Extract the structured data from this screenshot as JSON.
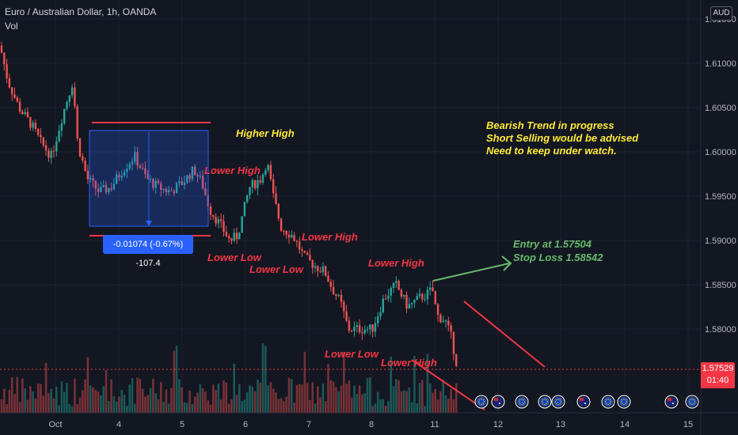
{
  "header": {
    "title": "Euro / Australian Dollar, 1h, OANDA",
    "volume_label": "Vol",
    "currency": "AUD"
  },
  "price_axis": {
    "ticks": [
      "1.61500",
      "1.61000",
      "1.60500",
      "1.60000",
      "1.59500",
      "1.59000",
      "1.58500",
      "1.58000"
    ],
    "current_price": "1.57529",
    "countdown": "01:40"
  },
  "chart_data": {
    "type": "candlestick",
    "symbol": "EURAUD",
    "timeframe": "1h",
    "x_ticks": [
      "Oct",
      "4",
      "5",
      "6",
      "7",
      "8",
      "11",
      "12",
      "13",
      "14",
      "15"
    ],
    "ylim": [
      1.5725,
      1.6155
    ],
    "grid": true,
    "price_path": [
      [
        0,
        1.612
      ],
      [
        10,
        1.608
      ],
      [
        24,
        1.605
      ],
      [
        40,
        1.603
      ],
      [
        52,
        1.601
      ],
      [
        65,
        1.5995
      ],
      [
        80,
        1.6045
      ],
      [
        92,
        1.608
      ],
      [
        98,
        1.601
      ],
      [
        110,
        1.597
      ],
      [
        125,
        1.5955
      ],
      [
        140,
        1.596
      ],
      [
        155,
        1.598
      ],
      [
        170,
        1.5995
      ],
      [
        185,
        1.597
      ],
      [
        200,
        1.596
      ],
      [
        215,
        1.5955
      ],
      [
        230,
        1.5965
      ],
      [
        245,
        1.598
      ],
      [
        255,
        1.5965
      ],
      [
        265,
        1.5935
      ],
      [
        280,
        1.5915
      ],
      [
        290,
        1.59
      ],
      [
        300,
        1.5905
      ],
      [
        315,
        1.596
      ],
      [
        330,
        1.597
      ],
      [
        337,
        1.599
      ],
      [
        345,
        1.595
      ],
      [
        355,
        1.5915
      ],
      [
        370,
        1.5905
      ],
      [
        385,
        1.588
      ],
      [
        400,
        1.587
      ],
      [
        410,
        1.5865
      ],
      [
        420,
        1.5845
      ],
      [
        430,
        1.583
      ],
      [
        440,
        1.58
      ],
      [
        455,
        1.58
      ],
      [
        470,
        1.58
      ],
      [
        485,
        1.5835
      ],
      [
        500,
        1.585
      ],
      [
        515,
        1.5825
      ],
      [
        530,
        1.5835
      ],
      [
        540,
        1.584
      ],
      [
        546,
        1.5845
      ],
      [
        552,
        1.5815
      ],
      [
        562,
        1.581
      ],
      [
        570,
        1.579
      ],
      [
        578,
        1.5755
      ]
    ],
    "annotations": {
      "higher_high": "Higher High",
      "lower_high_1": "Lower High",
      "lower_low_1": "Lower Low",
      "lower_low_2": "Lower Low",
      "lower_high_2": "Lower High",
      "lower_high_3": "Lower High",
      "lower_low_3": "Lower Low",
      "lower_high_4": "Lower High",
      "entry": "Entry at 1.57504",
      "stop_loss": "Stop Loss 1.58542",
      "trend_line1": "Bearish Trend in progress",
      "trend_line2": "Short Selling would be advised",
      "trend_line3": "Need to keep under watch."
    },
    "measure_tool": "-0.01074 (-0.67%) -107.4"
  },
  "colors": {
    "background": "#131722",
    "up": "#26a69a",
    "down": "#ef5350",
    "annotation_red": "#f23645",
    "note_yellow": "#ffeb3b",
    "entry_green": "#66bb6a",
    "measure_blue": "#2962ff"
  },
  "event_icons": [
    {
      "type": "eu-flag-icon"
    },
    {
      "type": "au-flag-icon"
    },
    {
      "type": "eu-flag-icon"
    },
    {
      "type": "eu-flag-icon"
    },
    {
      "type": "eu-flag-icon"
    },
    {
      "type": "au-flag-icon"
    },
    {
      "type": "eu-flag-icon"
    },
    {
      "type": "eu-flag-icon"
    },
    {
      "type": "au-flag-icon"
    },
    {
      "type": "eu-flag-icon"
    },
    {
      "type": "au-flag-icon"
    }
  ]
}
